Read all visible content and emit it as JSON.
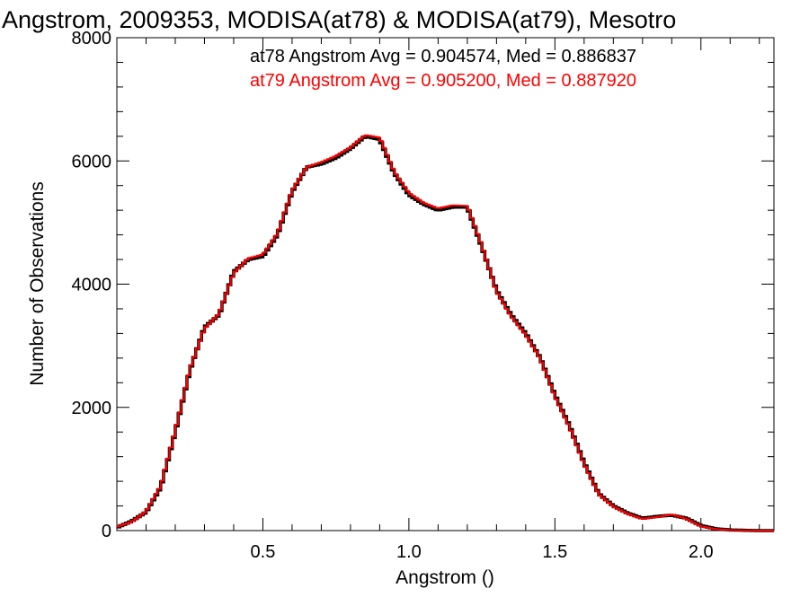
{
  "chart_data": {
    "type": "line",
    "title": "Angstrom, 2009353, MODISA(at78) & MODISA(at79), Mesotro",
    "xlabel": "Angstrom ()",
    "ylabel": "Number of Observations",
    "xlim": [
      0.0,
      2.25
    ],
    "ylim": [
      0,
      8000
    ],
    "xticks": [
      0.5,
      1.0,
      1.5,
      2.0
    ],
    "xtick_labels": [
      "0.5",
      "1.0",
      "1.5",
      "2.0"
    ],
    "yticks": [
      0,
      2000,
      4000,
      6000,
      8000
    ],
    "ytick_labels": [
      "0",
      "2000",
      "4000",
      "6000",
      "8000"
    ],
    "grid": false,
    "legend_position": "top-right",
    "annotations": [
      {
        "text": "at78 Angstrom Avg = 0.904574, Med = 0.886837",
        "color": "#000000"
      },
      {
        "text": "at79 Angstrom Avg = 0.905200, Med = 0.887920",
        "color": "#ff0000"
      }
    ],
    "x": [
      0.0,
      0.05,
      0.1,
      0.15,
      0.2,
      0.25,
      0.3,
      0.35,
      0.4,
      0.45,
      0.5,
      0.55,
      0.6,
      0.65,
      0.7,
      0.75,
      0.8,
      0.85,
      0.9,
      0.95,
      1.0,
      1.05,
      1.1,
      1.15,
      1.2,
      1.25,
      1.3,
      1.35,
      1.4,
      1.45,
      1.5,
      1.55,
      1.6,
      1.65,
      1.7,
      1.75,
      1.8,
      1.85,
      1.9,
      1.95,
      2.0,
      2.05,
      2.1,
      2.15,
      2.2,
      2.25
    ],
    "series": [
      {
        "name": "at78",
        "color": "#000000",
        "values": [
          50,
          150,
          300,
          700,
          1600,
          2600,
          3300,
          3500,
          4200,
          4400,
          4450,
          4800,
          5500,
          5900,
          5950,
          6050,
          6200,
          6400,
          6350,
          5800,
          5450,
          5300,
          5200,
          5250,
          5250,
          4600,
          3900,
          3500,
          3200,
          2800,
          2200,
          1700,
          1100,
          600,
          400,
          280,
          200,
          230,
          250,
          200,
          80,
          30,
          10,
          5,
          0,
          0
        ]
      },
      {
        "name": "at79",
        "color": "#ff0000",
        "values": [
          60,
          140,
          310,
          720,
          1620,
          2620,
          3280,
          3520,
          4180,
          4420,
          4480,
          4820,
          5520,
          5900,
          5980,
          6080,
          6220,
          6420,
          6380,
          5820,
          5480,
          5320,
          5230,
          5280,
          5270,
          4620,
          3880,
          3480,
          3180,
          2790,
          2180,
          1680,
          1080,
          590,
          390,
          270,
          190,
          220,
          260,
          190,
          70,
          25,
          8,
          4,
          0,
          0
        ]
      }
    ]
  }
}
